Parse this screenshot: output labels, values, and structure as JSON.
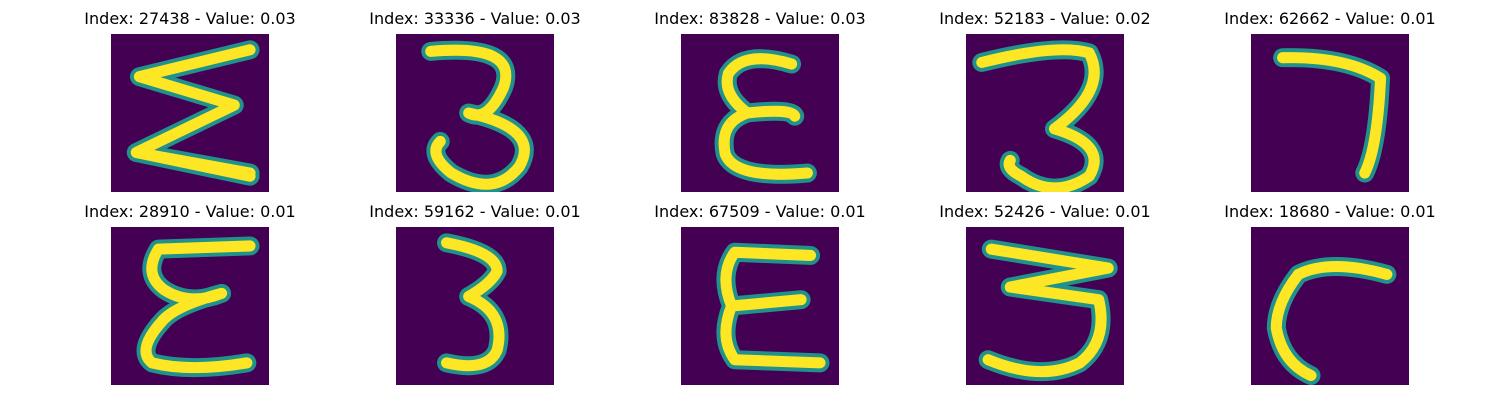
{
  "figure": {
    "colormap": "viridis",
    "background": "#440154",
    "stroke_mid": "#21918c",
    "stroke_high": "#fde725",
    "panels": [
      {
        "title": "Index: 27438 - Value: 0.03",
        "glyph": "zigzag-e"
      },
      {
        "title": "Index: 33336 - Value: 0.03",
        "glyph": "three"
      },
      {
        "title": "Index: 83828 - Value: 0.03",
        "glyph": "epsilon"
      },
      {
        "title": "Index: 52183 - Value: 0.02",
        "glyph": "three-flat"
      },
      {
        "title": "Index: 62662 - Value: 0.01",
        "glyph": "seven"
      },
      {
        "title": "Index: 28910 - Value: 0.01",
        "glyph": "looped-e"
      },
      {
        "title": "Index: 59162 - Value: 0.01",
        "glyph": "three-narrow"
      },
      {
        "title": "Index: 67509 - Value: 0.01",
        "glyph": "block-e"
      },
      {
        "title": "Index: 52426 - Value: 0.01",
        "glyph": "three-bold"
      },
      {
        "title": "Index: 18680 - Value: 0.01",
        "glyph": "hook"
      }
    ]
  }
}
